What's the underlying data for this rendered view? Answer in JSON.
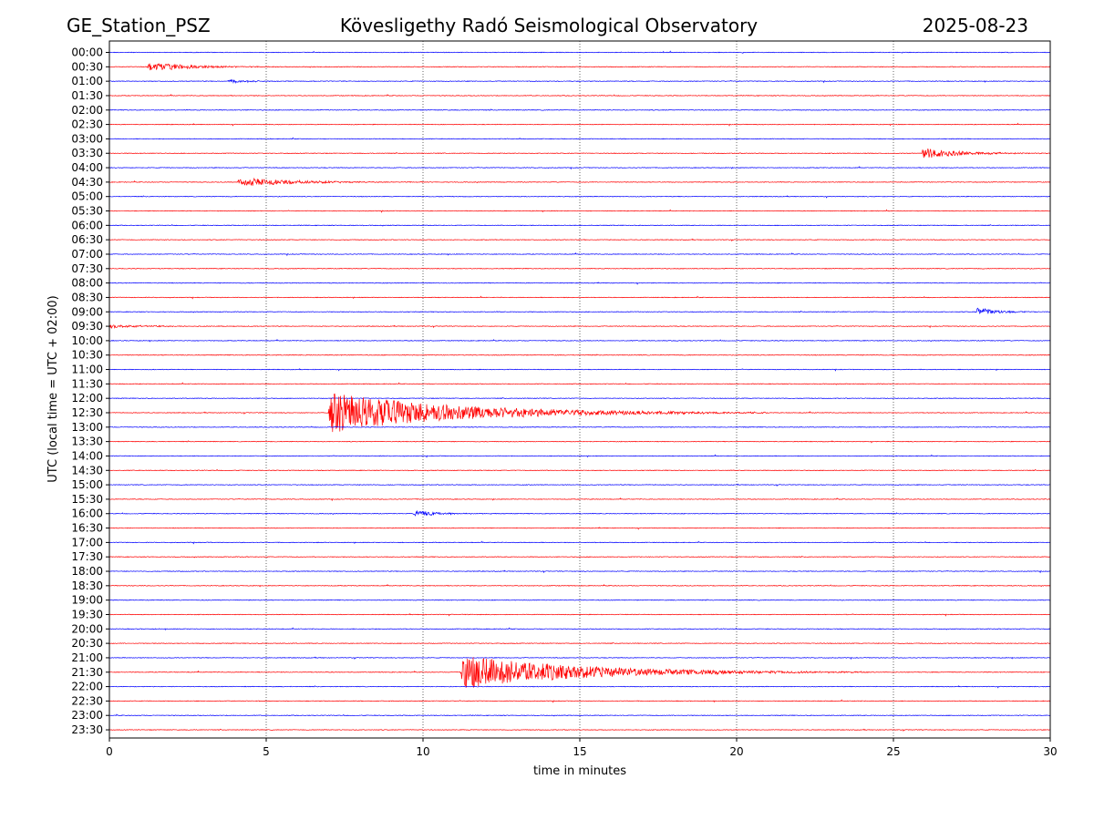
{
  "header": {
    "station": "GE_Station_PSZ",
    "observatory": "Kövesligethy Radó Seismological Observatory",
    "date": "2025-08-23"
  },
  "chart_data": {
    "type": "line",
    "subtype": "helicorder",
    "title": "Kövesligethy Radó Seismological Observatory",
    "xlabel": "time in minutes",
    "ylabel": "UTC (local time = UTC + 02:00)",
    "xlim": [
      0,
      30
    ],
    "x_ticks": [
      "0",
      "5",
      "10",
      "15",
      "20",
      "25",
      "30"
    ],
    "x_tick_values": [
      0,
      5,
      10,
      15,
      20,
      25,
      30
    ],
    "vertical_grid": true,
    "trace_colors": [
      "#0000ff",
      "#ff0000"
    ],
    "row_labels": [
      "00:00",
      "00:30",
      "01:00",
      "01:30",
      "02:00",
      "02:30",
      "03:00",
      "03:30",
      "04:00",
      "04:30",
      "05:00",
      "05:30",
      "06:00",
      "06:30",
      "07:00",
      "07:30",
      "08:00",
      "08:30",
      "09:00",
      "09:30",
      "10:00",
      "10:30",
      "11:00",
      "11:30",
      "12:00",
      "12:30",
      "13:00",
      "13:30",
      "14:00",
      "14:30",
      "15:00",
      "15:30",
      "16:00",
      "16:30",
      "17:00",
      "17:30",
      "18:00",
      "18:30",
      "19:00",
      "19:30",
      "20:00",
      "20:30",
      "21:00",
      "21:30",
      "22:00",
      "22:30",
      "23:00",
      "23:30"
    ],
    "events": [
      {
        "row": "00:30",
        "start_min": 1.2,
        "amplitude": 0.55,
        "duration_min": 4.5
      },
      {
        "row": "01:00",
        "start_min": 3.8,
        "amplitude": 0.28,
        "duration_min": 2.0
      },
      {
        "row": "03:30",
        "start_min": 25.9,
        "amplitude": 0.65,
        "duration_min": 4.1
      },
      {
        "row": "04:30",
        "start_min": 4.1,
        "amplitude": 0.55,
        "duration_min": 6.0
      },
      {
        "row": "09:00",
        "start_min": 27.6,
        "amplitude": 0.55,
        "duration_min": 2.4
      },
      {
        "row": "09:30",
        "start_min": 0.0,
        "amplitude": 0.2,
        "duration_min": 4.5
      },
      {
        "row": "12:30",
        "start_min": 7.0,
        "amplitude": 2.4,
        "duration_min": 14.0
      },
      {
        "row": "16:00",
        "start_min": 9.7,
        "amplitude": 0.4,
        "duration_min": 2.8
      },
      {
        "row": "21:30",
        "start_min": 11.2,
        "amplitude": 2.0,
        "duration_min": 13.0
      }
    ]
  }
}
